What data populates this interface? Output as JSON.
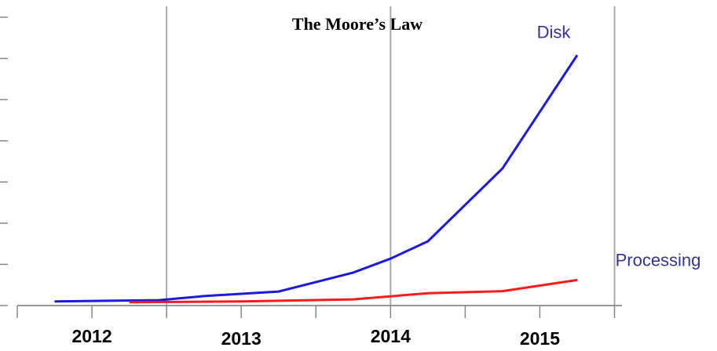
{
  "chart_data": {
    "type": "line",
    "title": "The Moore’s Law",
    "xlim": [
      2011.5,
      2015.55
    ],
    "xticks": [
      2012,
      2013,
      2014,
      2015
    ],
    "xticks_minor": [
      2011.5,
      2012.5,
      2013.5,
      2014.5,
      2015.5
    ],
    "grid_x": [
      2012.5,
      2014,
      2015.5
    ],
    "ylim": [
      0,
      7
    ],
    "yticks": [
      0,
      1,
      2,
      3,
      4,
      5,
      6,
      7
    ],
    "series": [
      {
        "name": "Disk",
        "color": "#1a1ae0",
        "x": [
          2011.75,
          2012.45,
          2012.75,
          2013.25,
          2013.75,
          2014,
          2014.25,
          2014.75,
          2015.25
        ],
        "values": [
          0.1,
          0.13,
          0.23,
          0.34,
          0.8,
          1.14,
          1.56,
          3.33,
          6.08
        ]
      },
      {
        "name": "Processing",
        "color": "#ff1a1a",
        "x": [
          2012.25,
          2013,
          2013.75,
          2014.25,
          2014.75,
          2015.25
        ],
        "values": [
          0.08,
          0.1,
          0.15,
          0.3,
          0.35,
          0.62
        ]
      }
    ]
  }
}
